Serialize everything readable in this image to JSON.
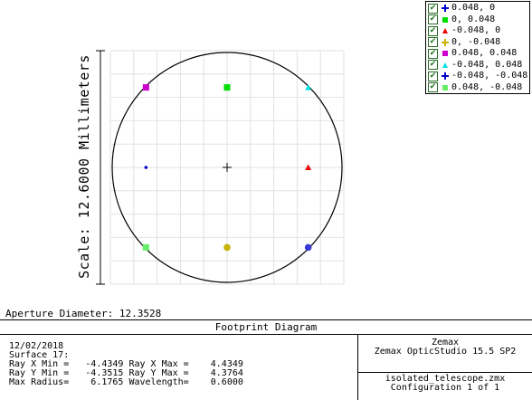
{
  "scale_label": "Scale: 12.6000 Millimeters",
  "aperture": "Aperture Diameter: 12.3528",
  "title": "Footprint Diagram",
  "info_lines": [
    "12/02/2018",
    "Surface 17:",
    "Ray X Min =   -4.4349 Ray X Max =    4.4349",
    "Ray Y Min =   -4.3515 Ray Y Max =    4.3764",
    "Max Radius=    6.1765 Wavelength=    0.6000"
  ],
  "software": [
    "Zemax",
    "Zemax OpticStudio 15.5 SP2"
  ],
  "file": [
    "isolated_telescope.zmx",
    "Configuration 1 of 1"
  ],
  "legend": [
    {
      "label": "0.048, 0",
      "color": "#0000cc",
      "icon": "plus-marker",
      "checked": true
    },
    {
      "label": "0, 0.048",
      "color": "#00dd00",
      "icon": "square-marker",
      "checked": true
    },
    {
      "label": "-0.048, 0",
      "color": "#ee0000",
      "icon": "triangle-marker",
      "checked": true
    },
    {
      "label": "0, -0.048",
      "color": "#c8b400",
      "icon": "plus-marker",
      "checked": true
    },
    {
      "label": "0.048, 0.048",
      "color": "#cc00cc",
      "icon": "square-marker",
      "checked": true
    },
    {
      "label": "-0.048, 0.048",
      "color": "#00e0e0",
      "icon": "triangle-marker",
      "checked": true
    },
    {
      "label": "-0.048, -0.048",
      "color": "#0000cc",
      "icon": "plus-marker",
      "checked": true
    },
    {
      "label": "0.048, -0.048",
      "color": "#66ee66",
      "icon": "square-marker",
      "checked": true
    }
  ],
  "footprints": [
    {
      "field": "0.048, 0",
      "color": "#0000cc",
      "shape": "dot-small",
      "nx": -0.706,
      "ny": 0.0
    },
    {
      "field": "-0.048, 0",
      "color": "#ee0000",
      "shape": "triangle",
      "nx": 0.706,
      "ny": 0.0
    },
    {
      "field": "0, 0.048",
      "color": "#00dd00",
      "shape": "square",
      "nx": 0.0,
      "ny": -0.696
    },
    {
      "field": "0, -0.048",
      "color": "#c8b400",
      "shape": "dot",
      "nx": 0.0,
      "ny": 0.696
    },
    {
      "field": "0.048, 0.048",
      "color": "#cc00cc",
      "shape": "square",
      "nx": -0.706,
      "ny": -0.696
    },
    {
      "field": "-0.048, 0.048",
      "color": "#00e0e0",
      "shape": "triangle",
      "nx": 0.706,
      "ny": -0.696
    },
    {
      "field": "-0.048, -0.048",
      "color": "#3a3ad0",
      "shape": "dot",
      "nx": 0.706,
      "ny": 0.696
    },
    {
      "field": "0.048, -0.048",
      "color": "#66ee66",
      "shape": "square",
      "nx": -0.706,
      "ny": 0.696
    }
  ]
}
